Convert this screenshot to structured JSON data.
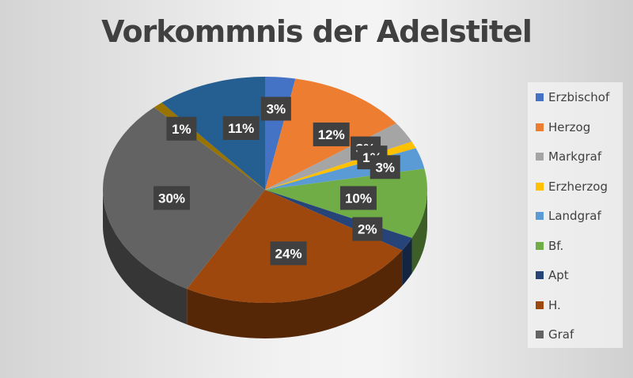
{
  "chart_data": {
    "type": "pie",
    "title": "Vorkommnis der Adelstitel",
    "style": "3d",
    "legend_position": "right",
    "slices": [
      {
        "name": "Erzbischof",
        "value": 3,
        "label": "3%",
        "color": "#4472c4"
      },
      {
        "name": "Herzog",
        "value": 12,
        "label": "12%",
        "color": "#ed7d31"
      },
      {
        "name": "Markgraf",
        "value": 3,
        "label": "3%",
        "color": "#a5a5a5"
      },
      {
        "name": "Erzherzog",
        "value": 1,
        "label": "1%",
        "color": "#ffc000"
      },
      {
        "name": "Landgraf",
        "value": 3,
        "label": "3%",
        "color": "#5b9bd5"
      },
      {
        "name": "Bf.",
        "value": 10,
        "label": "10%",
        "color": "#70ad47"
      },
      {
        "name": "Apt",
        "value": 2,
        "label": "2%",
        "color": "#264478"
      },
      {
        "name": "H.",
        "value": 24,
        "label": "24%",
        "color": "#9e480e"
      },
      {
        "name": "Graf",
        "value": 30,
        "label": "30%",
        "color": "#636363"
      },
      {
        "value": 1,
        "label": "1%",
        "color": "#997300"
      },
      {
        "value": 11,
        "label": "11%",
        "color": "#255e91"
      }
    ],
    "legend": [
      "Erzbischof",
      "Herzog",
      "Markgraf",
      "Erzherzog",
      "Landgraf",
      "Bf.",
      "Apt",
      "H.",
      "Graf"
    ]
  }
}
